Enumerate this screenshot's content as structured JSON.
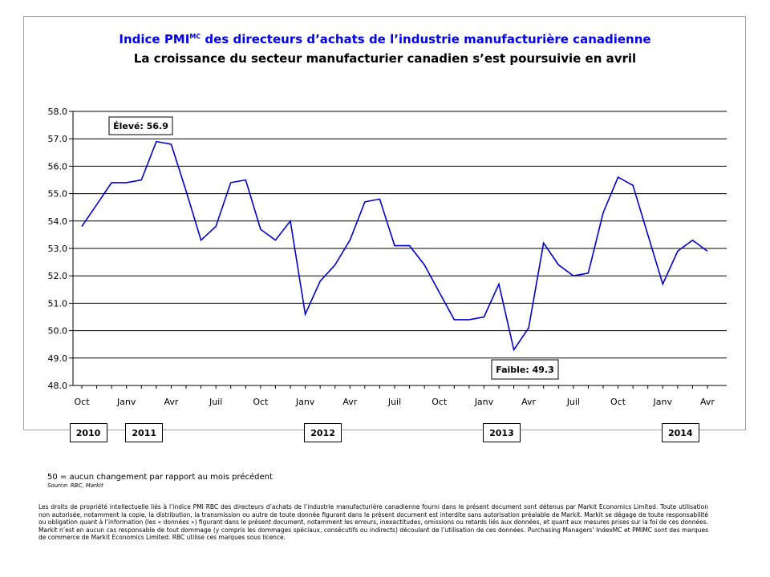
{
  "chart_data": {
    "type": "line",
    "title_main": "Indice PMI",
    "title_sup": "MC",
    "title_rest": " des directeurs d’achats de l’industrie manufacturière canadienne",
    "subtitle": "La croissance du secteur manufacturier canadien s’est poursuivie en avril",
    "ylim": [
      48.0,
      58.0
    ],
    "y_ticks": [
      "48.0",
      "49.0",
      "50.0",
      "51.0",
      "52.0",
      "53.0",
      "54.0",
      "55.0",
      "56.0",
      "57.0",
      "58.0"
    ],
    "x_tick_labels": [
      "Oct",
      "Janv",
      "Avr",
      "Juil",
      "Oct",
      "Janv",
      "Avr",
      "Juil",
      "Oct",
      "Janv",
      "Avr",
      "Juil",
      "Oct",
      "Janv",
      "Avr"
    ],
    "x_tick_month_index": [
      0,
      3,
      6,
      9,
      12,
      15,
      18,
      21,
      24,
      27,
      30,
      33,
      36,
      39,
      42
    ],
    "year_labels": [
      {
        "label": "2010",
        "month_index": 0
      },
      {
        "label": "2011",
        "month_index": 3
      },
      {
        "label": "2012",
        "month_index": 15
      },
      {
        "label": "2013",
        "month_index": 27
      },
      {
        "label": "2014",
        "month_index": 39
      }
    ],
    "series": [
      {
        "color": "#0000cc",
        "x_start": "Oct 2010",
        "values": [
          53.8,
          54.6,
          55.4,
          55.4,
          55.5,
          56.9,
          56.8,
          55.1,
          53.3,
          53.8,
          55.4,
          55.5,
          53.7,
          53.3,
          54.0,
          50.6,
          51.8,
          52.4,
          53.3,
          54.7,
          54.8,
          53.1,
          53.1,
          52.4,
          51.4,
          50.4,
          50.4,
          50.5,
          51.7,
          49.3,
          50.1,
          53.2,
          52.4,
          52.0,
          52.1,
          54.3,
          55.6,
          55.3,
          53.5,
          51.7,
          52.9,
          53.3,
          52.9
        ]
      }
    ],
    "annotations": [
      {
        "text": "Élevé: 56.9",
        "month_index": 5,
        "value": 56.9
      },
      {
        "text": "Faible: 49.3",
        "month_index": 29,
        "value": 49.3
      }
    ],
    "grid": true
  },
  "notes": {
    "footnote": "50 = aucun changement par rapport au mois précédent",
    "source": "Source: RBC, Markit",
    "disclaimer": "Les droits de propriété intellectuelle liés à l’indice PMI RBC des directeurs d’achats de l’industrie manufacturière canadienne fourni dans le présent document sont détenus par Markit Economics Limited. Toute utilisation non autorisée, notamment la copie, la distribution, la transmission ou autre de toute donnée figurant dans le présent document est interdite sans autorisation préalable de Markit. Markit se dégage de toute responsabilité ou obligation quant à l’information (les « données ») figurant dans le présent document, notamment les erreurs, inexactitudes, omissions ou retards liés aux données, et quant aux mesures prises sur la foi de ces données. Markit n’est en aucun cas responsable de tout dommage (y compris les dommages spéciaux, consécutifs ou indirects) découlant de l’utilisation de ces données. Purchasing Managers’ IndexMC et PMIMC sont des marques de commerce de Markit Economics Limited. RBC utilise ces marques sous licence."
  }
}
